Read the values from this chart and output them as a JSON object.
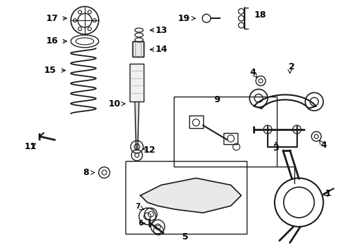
{
  "bg_color": "#ffffff",
  "line_color": "#1a1a1a",
  "figsize": [
    4.89,
    3.6
  ],
  "dpi": 100,
  "label_fontsize": 9,
  "small_fontsize": 7,
  "arrow_lw": 0.8
}
